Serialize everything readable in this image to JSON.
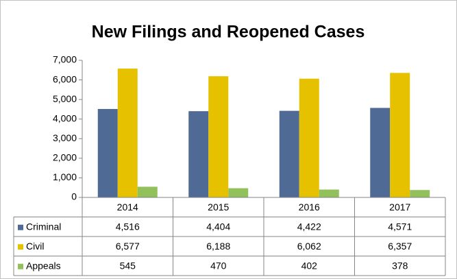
{
  "chart_data": {
    "type": "bar",
    "title": "New Filings and Reopened Cases",
    "categories": [
      "2014",
      "2015",
      "2016",
      "2017"
    ],
    "series": [
      {
        "name": "Criminal",
        "color": "#4f6a94",
        "values": [
          4516,
          4404,
          4422,
          4571
        ],
        "value_labels": [
          "4,516",
          "4,404",
          "4,422",
          "4,571"
        ]
      },
      {
        "name": "Civil",
        "color": "#e5c100",
        "values": [
          6577,
          6188,
          6062,
          6357
        ],
        "value_labels": [
          "6,577",
          "6,188",
          "6,062",
          "6,357"
        ]
      },
      {
        "name": "Appeals",
        "color": "#92c05a",
        "values": [
          545,
          470,
          402,
          378
        ],
        "value_labels": [
          "545",
          "470",
          "402",
          "378"
        ]
      }
    ],
    "ylim": [
      0,
      7000
    ],
    "yticks": [
      0,
      {
        "value": 1000,
        "label": "1,000"
      },
      {
        "value": 2000,
        "label": "2,000"
      },
      {
        "value": 3000,
        "label": "3,000"
      },
      {
        "value": 4000,
        "label": "4,000"
      },
      {
        "value": 5000,
        "label": "5,000"
      },
      {
        "value": 6000,
        "label": "6,000"
      },
      {
        "value": 7000,
        "label": "7,000"
      }
    ],
    "grid": false
  }
}
